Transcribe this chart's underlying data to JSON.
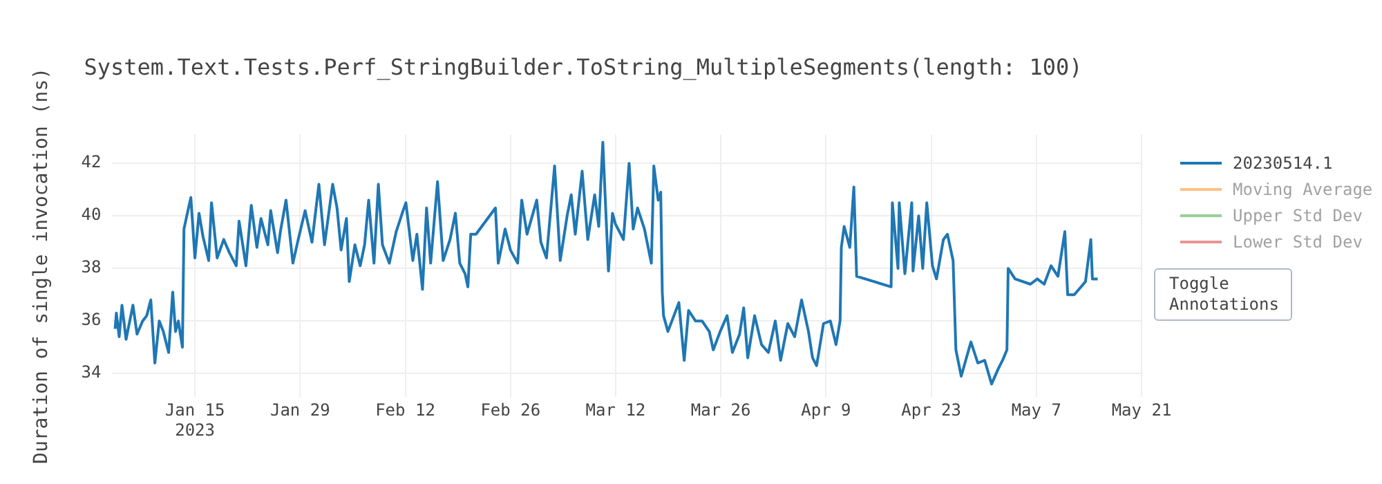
{
  "chart_data": {
    "type": "line",
    "title": "System.Text.Tests.Perf_StringBuilder.ToString_MultipleSegments(length: 100)",
    "ylabel": "Duration of single invocation (ns)",
    "x": [
      "2023-01-04T09:00",
      "2023-01-04T13:00",
      "2023-01-04T22:00",
      "2023-01-05T07:00",
      "2023-01-05T20:00",
      "2023-01-06T18:00",
      "2023-01-07T07:00",
      "2023-01-08T01:00",
      "2023-01-08T14:00",
      "2023-01-09T03:00",
      "2023-01-09T16:00",
      "2023-01-10T06:00",
      "2023-01-10T19:00",
      "2023-01-11T12:00",
      "2023-01-12T01:00",
      "2023-01-12T10:00",
      "2023-01-12T19:00",
      "2023-01-13T08:00",
      "2023-01-13T13:00",
      "2023-01-13T22:00",
      "2023-01-14T11:00",
      "2023-01-15T00:00",
      "2023-01-15T13:00",
      "2023-01-16T02:00",
      "2023-01-16T20:00",
      "2023-01-17T05:00",
      "2023-01-17T23:00",
      "2023-01-18T20:00",
      "2023-01-19T14:00",
      "2023-01-20T12:00",
      "2023-01-20T21:00",
      "2023-01-21T19:00",
      "2023-01-22T12:00",
      "2023-01-23T06:00",
      "2023-01-23T19:00",
      "2023-01-24T17:00",
      "2023-01-25T02:00",
      "2023-01-26T00:00",
      "2023-01-26T09:00",
      "2023-01-27T03:00",
      "2023-01-28T01:00",
      "2023-01-28T18:00",
      "2023-01-29T16:00",
      "2023-01-30T14:00",
      "2023-01-31T12:00",
      "2023-02-01T06:00",
      "2023-02-02T08:00",
      "2023-02-02T22:00",
      "2023-02-03T11:00",
      "2023-02-04T04:00",
      "2023-02-04T13:00",
      "2023-02-05T07:00",
      "2023-02-06T00:00",
      "2023-02-06T14:00",
      "2023-02-07T03:00",
      "2023-02-07T20:00",
      "2023-02-08T10:00",
      "2023-02-08T23:00",
      "2023-02-09T21:00",
      "2023-02-10T19:00",
      "2023-02-11T17:00",
      "2023-02-12T02:00",
      "2023-02-13T00:00",
      "2023-02-13T13:00",
      "2023-02-14T07:00",
      "2023-02-14T20:00",
      "2023-02-15T09:00",
      "2023-02-16T07:00",
      "2023-02-17T01:00",
      "2023-02-17T23:00",
      "2023-02-18T16:00",
      "2023-02-19T06:00",
      "2023-02-19T23:00",
      "2023-02-20T08:00",
      "2023-02-20T17:00",
      "2023-02-21T10:00",
      "2023-02-24T00:00",
      "2023-02-24T09:00",
      "2023-02-25T07:00",
      "2023-02-26T00:00",
      "2023-02-26T23:00",
      "2023-02-27T12:00",
      "2023-02-28T05:00",
      "2023-03-01T12:00",
      "2023-03-02T01:00",
      "2023-03-02T19:00",
      "2023-03-03T21:00",
      "2023-03-04T15:00",
      "2023-03-05T13:00",
      "2023-03-06T02:00",
      "2023-03-06T15:00",
      "2023-03-07T13:00",
      "2023-03-08T07:00",
      "2023-03-09T05:00",
      "2023-03-09T18:00",
      "2023-03-10T07:00",
      "2023-03-11T01:00",
      "2023-03-11T14:00",
      "2023-03-11T23:00",
      "2023-03-13T01:00",
      "2023-03-13T19:00",
      "2023-03-14T08:00",
      "2023-03-14T22:00",
      "2023-03-15T20:00",
      "2023-03-16T18:00",
      "2023-03-17T02:00",
      "2023-03-17T16:00",
      "2023-03-18T00:00",
      "2023-03-18T05:00",
      "2023-03-18T09:00",
      "2023-03-18T23:00",
      "2023-03-20T10:00",
      "2023-03-21T03:00",
      "2023-03-21T17:00",
      "2023-03-22T15:00",
      "2023-03-23T12:00",
      "2023-03-24T11:00",
      "2023-03-25T00:00",
      "2023-03-25T22:00",
      "2023-03-26T20:00",
      "2023-03-27T13:00",
      "2023-03-28T12:00",
      "2023-03-29T01:00",
      "2023-03-29T14:00",
      "2023-03-30T12:00",
      "2023-03-31T10:00",
      "2023-04-01T08:00",
      "2023-04-02T06:00",
      "2023-04-02T23:00",
      "2023-04-03T22:00",
      "2023-04-04T20:00",
      "2023-04-05T18:00",
      "2023-04-06T16:00",
      "2023-04-07T05:00",
      "2023-04-07T18:00",
      "2023-04-08T16:00",
      "2023-04-09T14:00",
      "2023-04-10T08:00",
      "2023-04-10T21:00",
      "2023-04-11T01:00",
      "2023-04-11T10:00",
      "2023-04-12T04:00",
      "2023-04-12T17:00",
      "2023-04-13T02:00",
      "2023-04-17T16:00",
      "2023-04-17T20:00",
      "2023-04-18T14:00",
      "2023-04-18T18:00",
      "2023-04-19T12:00",
      "2023-04-20T10:00",
      "2023-04-20T14:00",
      "2023-04-21T08:00",
      "2023-04-21T21:00",
      "2023-04-22T10:00",
      "2023-04-23T04:00",
      "2023-04-23T17:00",
      "2023-04-24T15:00",
      "2023-04-25T04:00",
      "2023-04-25T22:00",
      "2023-04-26T07:00",
      "2023-04-27T00:00",
      "2023-04-28T07:00",
      "2023-04-29T05:00",
      "2023-04-30T03:00",
      "2023-05-01T01:00",
      "2023-05-01T23:00",
      "2023-05-02T12:00",
      "2023-05-03T02:00",
      "2023-05-03T06:00",
      "2023-05-04T04:00",
      "2023-05-06T05:00",
      "2023-05-07T03:00",
      "2023-05-08T01:00",
      "2023-05-08T23:00",
      "2023-05-09T21:00",
      "2023-05-10T19:00",
      "2023-05-11T04:00",
      "2023-05-12T01:00",
      "2023-05-12T23:00",
      "2023-05-13T13:00",
      "2023-05-14T06:00",
      "2023-05-14T11:00",
      "2023-05-15T04:00"
    ],
    "series": [
      {
        "name": "20230514.1",
        "color": "#1f77b4",
        "values": [
          35.7,
          36.3,
          35.4,
          36.6,
          35.3,
          36.6,
          35.5,
          36.0,
          36.2,
          36.8,
          34.4,
          36.0,
          35.6,
          34.8,
          37.1,
          35.6,
          36.0,
          35.0,
          39.5,
          40.0,
          40.7,
          38.4,
          40.1,
          39.2,
          38.3,
          40.5,
          38.4,
          39.1,
          38.6,
          38.1,
          39.8,
          38.1,
          40.4,
          38.8,
          39.9,
          38.9,
          40.2,
          38.6,
          39.4,
          40.6,
          38.2,
          39.1,
          40.2,
          39.0,
          41.2,
          38.9,
          41.2,
          40.3,
          38.7,
          39.9,
          37.5,
          38.9,
          38.1,
          38.9,
          40.6,
          38.2,
          41.2,
          38.9,
          38.2,
          39.4,
          40.2,
          40.5,
          38.3,
          39.3,
          37.2,
          40.3,
          38.2,
          41.3,
          38.3,
          39.1,
          40.1,
          38.2,
          37.8,
          37.3,
          39.3,
          39.3,
          40.3,
          38.2,
          39.5,
          38.7,
          38.2,
          40.6,
          39.3,
          40.6,
          39.0,
          38.4,
          41.9,
          38.3,
          40.0,
          40.8,
          39.3,
          41.7,
          39.1,
          40.8,
          39.6,
          42.8,
          37.9,
          40.1,
          39.7,
          39.1,
          42.0,
          39.5,
          40.3,
          39.5,
          38.2,
          41.9,
          40.6,
          40.9,
          37.1,
          36.2,
          35.6,
          36.7,
          34.5,
          36.4,
          36.0,
          36.0,
          35.6,
          34.9,
          35.6,
          36.2,
          34.8,
          35.5,
          36.5,
          34.6,
          36.2,
          35.1,
          34.8,
          36.0,
          34.5,
          35.9,
          35.4,
          36.8,
          35.6,
          34.6,
          34.3,
          35.9,
          36.0,
          35.1,
          36.0,
          38.8,
          39.6,
          38.8,
          41.1,
          37.7,
          37.3,
          40.5,
          38.0,
          40.5,
          37.8,
          40.5,
          37.9,
          40.0,
          38.0,
          40.5,
          38.1,
          37.6,
          39.1,
          39.3,
          38.3,
          34.9,
          33.9,
          35.2,
          34.4,
          34.5,
          33.6,
          34.2,
          34.5,
          34.9,
          38.0,
          37.6,
          37.4,
          37.6,
          37.4,
          38.1,
          37.7,
          39.4,
          37.0,
          37.0,
          37.3,
          37.5,
          39.1,
          37.6,
          37.6
        ]
      },
      {
        "name": "Moving Average",
        "color": "#ff7f0e",
        "values": [
          null,
          null,
          null,
          null,
          null,
          null,
          null,
          null,
          null,
          null,
          null,
          null,
          null,
          null,
          null,
          null,
          null,
          null,
          null,
          null,
          null,
          null,
          null,
          null,
          null,
          null,
          null,
          null,
          null,
          null,
          null,
          null,
          null,
          null,
          null,
          null,
          null,
          null,
          null,
          null,
          null,
          null,
          null,
          null,
          null,
          null,
          null,
          null,
          null,
          null,
          null,
          null,
          null,
          null,
          null,
          null,
          null,
          null,
          null,
          null,
          null,
          null,
          null,
          null,
          null,
          null,
          null,
          null,
          null,
          null,
          null,
          null,
          null,
          null,
          null,
          null,
          null,
          null,
          null,
          null,
          null,
          null,
          null,
          null,
          null,
          null,
          null,
          null,
          null,
          null,
          null,
          null,
          null,
          null,
          null,
          null,
          null,
          null,
          null,
          null,
          null,
          null,
          null,
          null,
          null,
          null,
          null,
          null,
          null,
          null,
          null,
          null,
          null,
          null,
          null,
          null,
          null,
          null,
          null,
          null,
          null,
          null,
          null,
          null,
          null,
          null,
          null,
          null,
          null,
          null,
          null,
          null,
          null,
          null,
          null,
          null,
          null,
          null,
          null,
          null,
          null,
          null,
          null,
          null,
          null,
          null,
          null,
          null,
          null,
          null,
          null,
          null,
          null,
          null,
          null,
          null,
          null,
          null,
          null,
          null,
          null,
          null,
          null,
          null,
          null,
          null,
          null,
          null,
          null,
          null,
          null,
          null,
          null,
          null,
          null,
          null,
          null,
          null,
          null,
          null,
          null,
          null,
          null
        ]
      },
      {
        "name": "Upper Std Dev",
        "color": "#2ca02c",
        "values": [
          null,
          null,
          null,
          null,
          null,
          null,
          null,
          null,
          null,
          null,
          null,
          null,
          null,
          null,
          null,
          null,
          null,
          null,
          null,
          null,
          null,
          null,
          null,
          null,
          null,
          null,
          null,
          null,
          null,
          null,
          null,
          null,
          null,
          null,
          null,
          null,
          null,
          null,
          null,
          null,
          null,
          null,
          null,
          null,
          null,
          null,
          null,
          null,
          null,
          null,
          null,
          null,
          null,
          null,
          null,
          null,
          null,
          null,
          null,
          null,
          null,
          null,
          null,
          null,
          null,
          null,
          null,
          null,
          null,
          null,
          null,
          null,
          null,
          null,
          null,
          null,
          null,
          null,
          null,
          null,
          null,
          null,
          null,
          null,
          null,
          null,
          null,
          null,
          null,
          null,
          null,
          null,
          null,
          null,
          null,
          null,
          null,
          null,
          null,
          null,
          null,
          null,
          null,
          null,
          null,
          null,
          null,
          null,
          null,
          null,
          null,
          null,
          null,
          null,
          null,
          null,
          null,
          null,
          null,
          null,
          null,
          null,
          null,
          null,
          null,
          null,
          null,
          null,
          null,
          null,
          null,
          null,
          null,
          null,
          null,
          null,
          null,
          null,
          null,
          null,
          null,
          null,
          null,
          null,
          null,
          null,
          null,
          null,
          null,
          null,
          null,
          null,
          null,
          null,
          null,
          null,
          null,
          null,
          null,
          null,
          null,
          null,
          null,
          null,
          null,
          null,
          null,
          null,
          null,
          null,
          null,
          null,
          null,
          null,
          null,
          null,
          null,
          null,
          null,
          null,
          null,
          null,
          null
        ]
      },
      {
        "name": "Lower Std Dev",
        "color": "#d62728",
        "values": [
          null,
          null,
          null,
          null,
          null,
          null,
          null,
          null,
          null,
          null,
          null,
          null,
          null,
          null,
          null,
          null,
          null,
          null,
          null,
          null,
          null,
          null,
          null,
          null,
          null,
          null,
          null,
          null,
          null,
          null,
          null,
          null,
          null,
          null,
          null,
          null,
          null,
          null,
          null,
          null,
          null,
          null,
          null,
          null,
          null,
          null,
          null,
          null,
          null,
          null,
          null,
          null,
          null,
          null,
          null,
          null,
          null,
          null,
          null,
          null,
          null,
          null,
          null,
          null,
          null,
          null,
          null,
          null,
          null,
          null,
          null,
          null,
          null,
          null,
          null,
          null,
          null,
          null,
          null,
          null,
          null,
          null,
          null,
          null,
          null,
          null,
          null,
          null,
          null,
          null,
          null,
          null,
          null,
          null,
          null,
          null,
          null,
          null,
          null,
          null,
          null,
          null,
          null,
          null,
          null,
          null,
          null,
          null,
          null,
          null,
          null,
          null,
          null,
          null,
          null,
          null,
          null,
          null,
          null,
          null,
          null,
          null,
          null,
          null,
          null,
          null,
          null,
          null,
          null,
          null,
          null,
          null,
          null,
          null,
          null,
          null,
          null,
          null,
          null,
          null,
          null,
          null,
          null,
          null,
          null,
          null,
          null,
          null,
          null,
          null,
          null,
          null,
          null,
          null,
          null,
          null,
          null,
          null,
          null,
          null,
          null,
          null,
          null,
          null,
          null,
          null,
          null,
          null,
          null,
          null,
          null,
          null,
          null,
          null,
          null,
          null,
          null,
          null,
          null,
          null,
          null,
          null,
          null
        ]
      }
    ],
    "xlim": [
      "2023-01-04",
      "2023-05-21"
    ],
    "xticks": [
      {
        "value": "2023-01-15",
        "label": "Jan 15\n2023"
      },
      {
        "value": "2023-01-29",
        "label": "Jan 29"
      },
      {
        "value": "2023-02-12",
        "label": "Feb 12"
      },
      {
        "value": "2023-02-26",
        "label": "Feb 26"
      },
      {
        "value": "2023-03-12",
        "label": "Mar 12"
      },
      {
        "value": "2023-03-26",
        "label": "Mar 26"
      },
      {
        "value": "2023-04-09",
        "label": "Apr 9"
      },
      {
        "value": "2023-04-23",
        "label": "Apr 23"
      },
      {
        "value": "2023-05-07",
        "label": "May 7"
      },
      {
        "value": "2023-05-21",
        "label": "May 21"
      }
    ],
    "ylim": [
      33.1,
      43.1
    ],
    "yticks": [
      34,
      36,
      38,
      40,
      42
    ],
    "grid": true,
    "legend": "right",
    "line_style": "solid",
    "marker": "none",
    "annotations": [
      "Toggle Annotations"
    ]
  }
}
